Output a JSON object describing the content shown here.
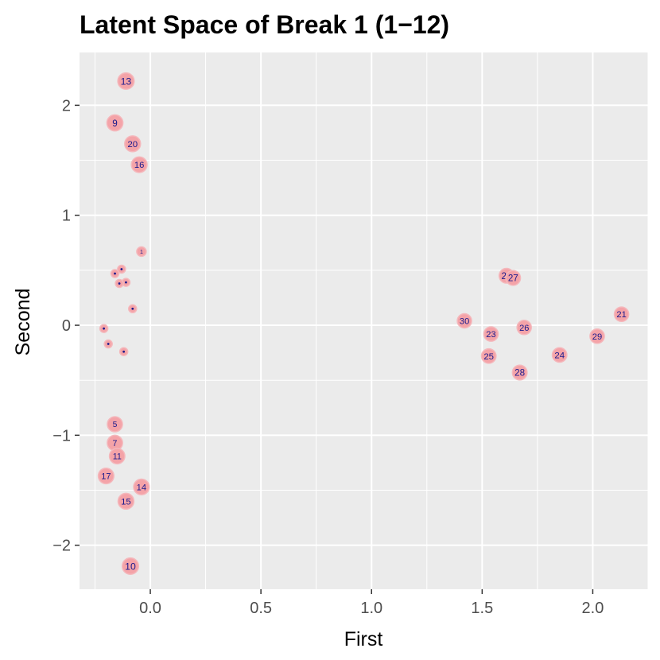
{
  "chart_data": {
    "type": "scatter",
    "title": "Latent Space of Break 1 (1−12)",
    "xlabel": "First",
    "ylabel": "Second",
    "xlim": [
      -0.32,
      2.25
    ],
    "ylim": [
      -2.4,
      2.48
    ],
    "x_ticks": [
      0.0,
      0.5,
      1.0,
      1.5,
      2.0
    ],
    "x_tick_labels": [
      "0.0",
      "0.5",
      "1.0",
      "1.5",
      "2.0"
    ],
    "y_ticks": [
      -2,
      -1,
      0,
      1,
      2
    ],
    "y_tick_labels": [
      "−2",
      "−1",
      "0",
      "1",
      "2"
    ],
    "grid": true,
    "background": "#ebebeb",
    "grid_color": "#ffffff",
    "point_fill": "#f4a3a8",
    "point_stroke": "#f4b8bc",
    "label_color": "#1a1a8c",
    "points": [
      {
        "label": "13",
        "x": -0.11,
        "y": 2.22
      },
      {
        "label": "9",
        "x": -0.16,
        "y": 1.84
      },
      {
        "label": "20",
        "x": -0.08,
        "y": 1.65
      },
      {
        "label": "16",
        "x": -0.05,
        "y": 1.46
      },
      {
        "label": "1",
        "x": -0.04,
        "y": 0.67
      },
      {
        "label": "",
        "x": -0.13,
        "y": 0.51
      },
      {
        "label": "",
        "x": -0.16,
        "y": 0.47
      },
      {
        "label": "",
        "x": -0.11,
        "y": 0.39
      },
      {
        "label": "",
        "x": -0.14,
        "y": 0.38
      },
      {
        "label": "",
        "x": -0.08,
        "y": 0.15
      },
      {
        "label": "",
        "x": -0.21,
        "y": -0.03
      },
      {
        "label": "",
        "x": -0.19,
        "y": -0.17
      },
      {
        "label": "",
        "x": -0.12,
        "y": -0.24
      },
      {
        "label": "5",
        "x": -0.16,
        "y": -0.9
      },
      {
        "label": "7",
        "x": -0.16,
        "y": -1.07
      },
      {
        "label": "11",
        "x": -0.15,
        "y": -1.19
      },
      {
        "label": "17",
        "x": -0.2,
        "y": -1.37
      },
      {
        "label": "14",
        "x": -0.04,
        "y": -1.47
      },
      {
        "label": "15",
        "x": -0.11,
        "y": -1.6
      },
      {
        "label": "10",
        "x": -0.09,
        "y": -2.19
      },
      {
        "label": "22",
        "x": 1.61,
        "y": 0.45
      },
      {
        "label": "27",
        "x": 1.64,
        "y": 0.43
      },
      {
        "label": "30",
        "x": 1.42,
        "y": 0.04
      },
      {
        "label": "23",
        "x": 1.54,
        "y": -0.08
      },
      {
        "label": "26",
        "x": 1.69,
        "y": -0.02
      },
      {
        "label": "25",
        "x": 1.53,
        "y": -0.28
      },
      {
        "label": "28",
        "x": 1.67,
        "y": -0.43
      },
      {
        "label": "24",
        "x": 1.85,
        "y": -0.27
      },
      {
        "label": "29",
        "x": 2.02,
        "y": -0.1
      },
      {
        "label": "21",
        "x": 2.13,
        "y": 0.1
      }
    ]
  }
}
